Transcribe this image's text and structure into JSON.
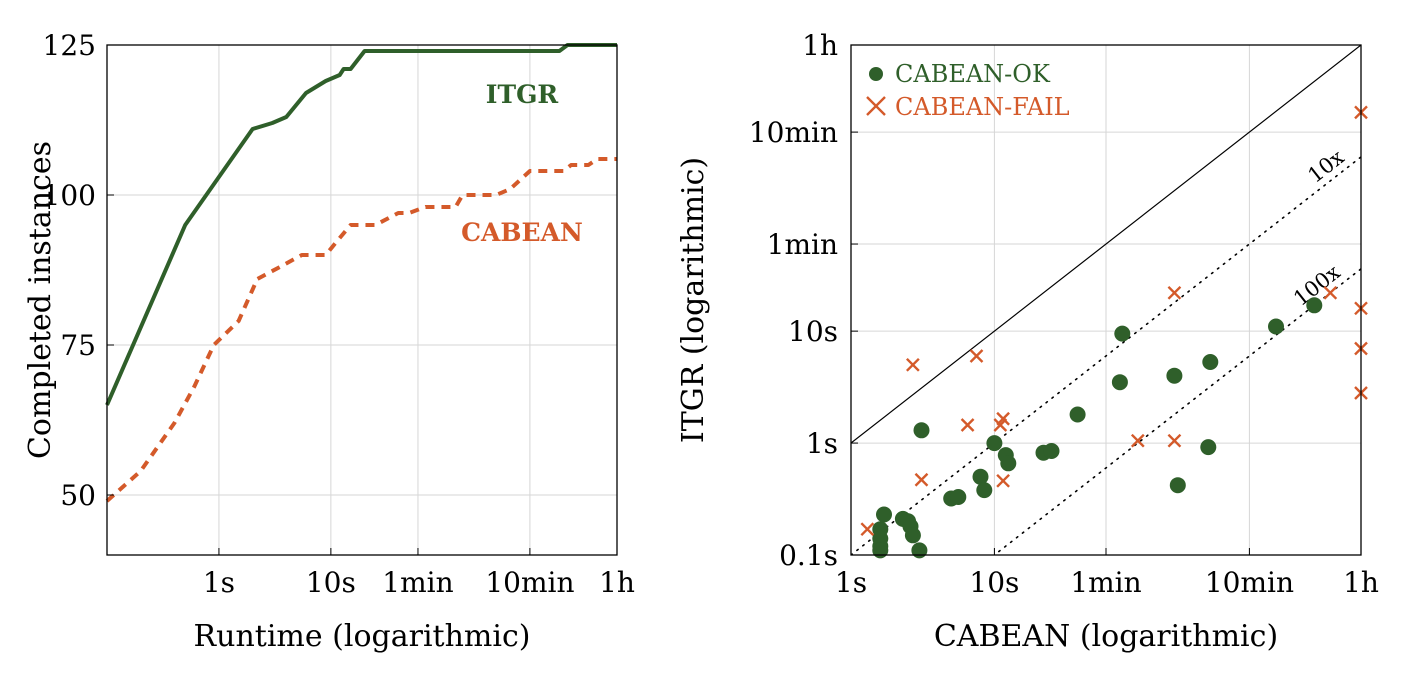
{
  "chart_data": [
    {
      "type": "line",
      "title": "",
      "xlabel": "Runtime (logarithmic)",
      "ylabel": "Completed instances",
      "x_scale": "log",
      "x_unit": "seconds",
      "xlim": [
        0.1,
        3600
      ],
      "ylim": [
        40,
        125
      ],
      "x_ticks": [
        {
          "value": 1,
          "label": "1s"
        },
        {
          "value": 10,
          "label": "10s"
        },
        {
          "value": 60,
          "label": "1min"
        },
        {
          "value": 600,
          "label": "10min"
        },
        {
          "value": 3600,
          "label": "1h"
        }
      ],
      "y_ticks": [
        {
          "value": 50,
          "label": "50"
        },
        {
          "value": 75,
          "label": "75"
        },
        {
          "value": 100,
          "label": "100"
        },
        {
          "value": 125,
          "label": "125"
        }
      ],
      "grid": true,
      "series": [
        {
          "name": "ITGR",
          "label": "ITGR",
          "color": "#2f5f2a",
          "style": "solid",
          "points": [
            [
              0.1,
              65
            ],
            [
              0.5,
              95
            ],
            [
              1.0,
              103
            ],
            [
              2.0,
              111
            ],
            [
              3.0,
              112
            ],
            [
              4.0,
              113
            ],
            [
              6.0,
              117
            ],
            [
              9.0,
              119
            ],
            [
              12.0,
              120
            ],
            [
              13.0,
              121
            ],
            [
              15.0,
              121
            ],
            [
              20.0,
              124
            ],
            [
              40.0,
              124
            ],
            [
              100.0,
              124
            ],
            [
              500.0,
              124
            ],
            [
              1100.0,
              124
            ],
            [
              1300.0,
              125
            ],
            [
              3600.0,
              125
            ]
          ]
        },
        {
          "name": "CABEAN",
          "label": "CABEAN",
          "color": "#d45a2a",
          "style": "dashed",
          "points": [
            [
              0.1,
              49
            ],
            [
              0.2,
              54
            ],
            [
              0.4,
              62
            ],
            [
              0.6,
              68
            ],
            [
              0.9,
              75
            ],
            [
              1.5,
              79
            ],
            [
              2.2,
              86
            ],
            [
              3.5,
              88
            ],
            [
              5.5,
              90
            ],
            [
              9.0,
              90
            ],
            [
              11.0,
              92
            ],
            [
              15.0,
              95
            ],
            [
              25.0,
              95
            ],
            [
              40.0,
              97
            ],
            [
              50.0,
              97
            ],
            [
              70.0,
              98
            ],
            [
              130.0,
              98
            ],
            [
              150.0,
              100
            ],
            [
              300.0,
              100
            ],
            [
              400.0,
              101
            ],
            [
              600.0,
              104
            ],
            [
              1000.0,
              104
            ],
            [
              1200.0,
              104
            ],
            [
              1400.0,
              105
            ],
            [
              2000.0,
              105
            ],
            [
              2400.0,
              106
            ],
            [
              3600.0,
              106
            ]
          ]
        }
      ]
    },
    {
      "type": "scatter",
      "title": "",
      "xlabel": "CABEAN (logarithmic)",
      "ylabel": "ITGR (logarithmic)",
      "x_scale": "log",
      "y_scale": "log",
      "unit": "seconds",
      "xlim": [
        1,
        3600
      ],
      "ylim": [
        0.1,
        3600
      ],
      "x_ticks": [
        {
          "value": 1,
          "label": "1s"
        },
        {
          "value": 10,
          "label": "10s"
        },
        {
          "value": 60,
          "label": "1min"
        },
        {
          "value": 600,
          "label": "10min"
        },
        {
          "value": 3600,
          "label": "1h"
        }
      ],
      "y_ticks": [
        {
          "value": 0.1,
          "label": "0.1s"
        },
        {
          "value": 1,
          "label": "1s"
        },
        {
          "value": 10,
          "label": "10s"
        },
        {
          "value": 60,
          "label": "1min"
        },
        {
          "value": 600,
          "label": "10min"
        },
        {
          "value": 3600,
          "label": "1h"
        }
      ],
      "grid": true,
      "legend_position": "top-left",
      "reference_lines": [
        {
          "name": "1x",
          "factor": 1,
          "style": "solid",
          "label": ""
        },
        {
          "name": "10x",
          "factor": 10,
          "style": "dotted",
          "label": "10x"
        },
        {
          "name": "100x",
          "factor": 100,
          "style": "dotted",
          "label": "100x"
        }
      ],
      "series": [
        {
          "name": "CABEAN-OK",
          "label": "CABEAN-OK",
          "marker": "circle",
          "color": "#2f5f2a",
          "points": [
            [
              1.7,
              0.23
            ],
            [
              1.6,
              0.17
            ],
            [
              1.6,
              0.14
            ],
            [
              1.6,
              0.12
            ],
            [
              1.6,
              0.11
            ],
            [
              2.3,
              0.21
            ],
            [
              2.5,
              0.2
            ],
            [
              2.6,
              0.18
            ],
            [
              2.7,
              0.15
            ],
            [
              3.0,
              0.11
            ],
            [
              3.1,
              1.3
            ],
            [
              5.0,
              0.32
            ],
            [
              5.6,
              0.33
            ],
            [
              8.0,
              0.5
            ],
            [
              8.5,
              0.38
            ],
            [
              10.0,
              1.0
            ],
            [
              12.0,
              0.78
            ],
            [
              12.5,
              0.66
            ],
            [
              22.0,
              0.82
            ],
            [
              25.0,
              0.85
            ],
            [
              38.0,
              1.8
            ],
            [
              75.0,
              3.5
            ],
            [
              78.0,
              9.5
            ],
            [
              180.0,
              4.0
            ],
            [
              190.0,
              0.42
            ],
            [
              310.0,
              0.92
            ],
            [
              320.0,
              5.3
            ],
            [
              920.0,
              11.0
            ],
            [
              1700.0,
              17.0
            ]
          ]
        },
        {
          "name": "CABEAN-FAIL",
          "label": "CABEAN-FAIL",
          "marker": "x",
          "color": "#d45a2a",
          "points": [
            [
              1.3,
              0.17
            ],
            [
              2.7,
              5.0
            ],
            [
              3.1,
              0.47
            ],
            [
              6.5,
              1.45
            ],
            [
              7.5,
              6.0
            ],
            [
              11.0,
              1.45
            ],
            [
              11.5,
              1.65
            ],
            [
              11.5,
              0.46
            ],
            [
              100.0,
              1.05
            ],
            [
              180.0,
              22.0
            ],
            [
              180.0,
              1.05
            ],
            [
              2200.0,
              22.0
            ],
            [
              3600.0,
              16.0
            ],
            [
              3600.0,
              7.0
            ],
            [
              3600.0,
              2.8
            ],
            [
              3600.0,
              900.0
            ]
          ]
        }
      ]
    }
  ]
}
